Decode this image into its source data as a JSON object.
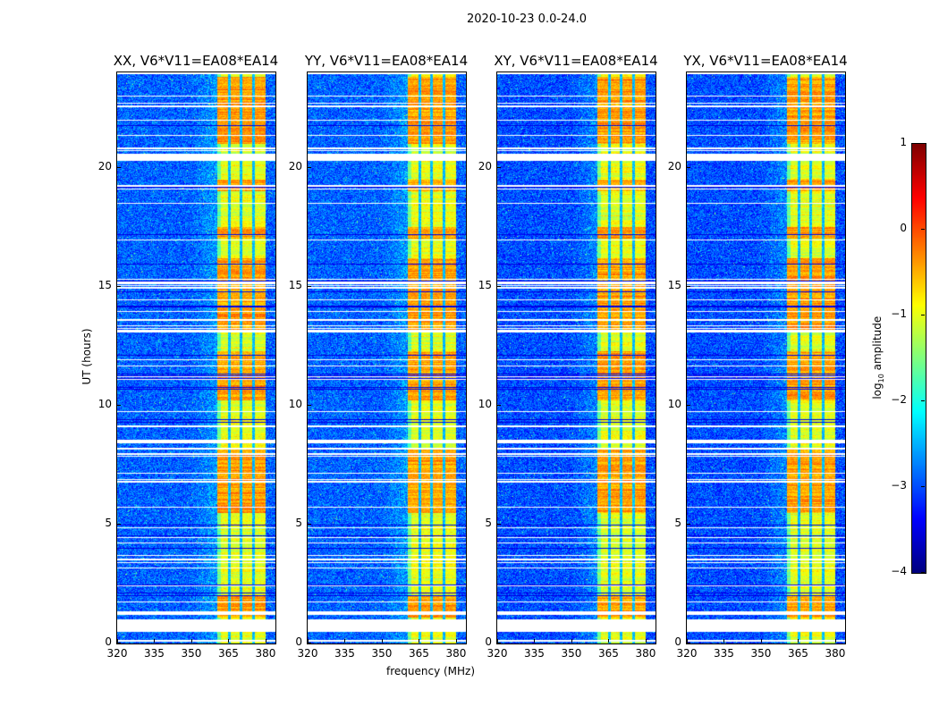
{
  "chart_data": {
    "type": "heatmap",
    "title": "2020-10-23 0.0-24.0",
    "xlabel": "frequency (MHz)",
    "ylabel": "UT (hours)",
    "xlim": [
      320,
      384
    ],
    "ylim": [
      0,
      24
    ],
    "xticks": [
      "320",
      "335",
      "350",
      "365",
      "380"
    ],
    "xtick_values": [
      320,
      335,
      350,
      365,
      380
    ],
    "yticks": [
      "0",
      "5",
      "10",
      "15",
      "20"
    ],
    "ytick_values": [
      0,
      5,
      10,
      15,
      20
    ],
    "colormap": "jet",
    "colorbar": {
      "label_main": "log",
      "label_sub": "10",
      "label_rest": " amplitude",
      "range": [
        -4,
        1
      ],
      "ticks": [
        "1",
        "0",
        "−1",
        "−2",
        "−3",
        "−4"
      ],
      "tick_values": [
        1,
        0,
        -1,
        -2,
        -3,
        -4
      ]
    },
    "panels": [
      {
        "title": "XX, V6*V11=EA08*EA14",
        "background_level": -2.9
      },
      {
        "title": "YY, V6*V11=EA08*EA14",
        "background_level": -2.9
      },
      {
        "title": "XY, V6*V11=EA08*EA14",
        "background_level": -3.0
      },
      {
        "title": "YX, V6*V11=EA08*EA14",
        "background_level": -3.0
      }
    ],
    "rfi_band_mhz": [
      360.5,
      380
    ],
    "rfi_band_gaps_mhz": [
      365.5,
      370.2,
      375.2
    ],
    "rfi_band_level": -1.0,
    "rfi_hot_intervals_hours": [
      [
        1.1,
        2.0
      ],
      [
        5.5,
        8.2
      ],
      [
        10.2,
        12.3
      ],
      [
        13.2,
        16.2
      ],
      [
        17.0,
        17.5
      ],
      [
        19.0,
        19.5
      ],
      [
        21.0,
        23.8
      ]
    ],
    "flagged_intervals_hours": [
      [
        0.5,
        1.0
      ],
      [
        20.3,
        20.6
      ]
    ],
    "dark_intervals_hours": [
      [
        10.0,
        13.0
      ]
    ]
  }
}
